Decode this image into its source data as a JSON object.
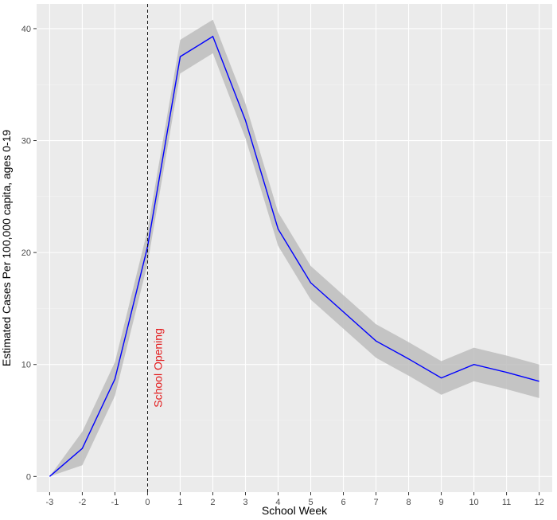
{
  "chart_data": {
    "type": "line",
    "title": "",
    "xlabel": "School Week",
    "ylabel": "Estimated Cases Per 100,000 capita, ages 0-19",
    "x": [
      -3,
      -2,
      -1,
      0,
      1,
      2,
      3,
      4,
      5,
      6,
      7,
      8,
      9,
      10,
      11,
      12
    ],
    "series": [
      {
        "values": [
          0,
          2.5,
          8.7,
          20.5,
          37.5,
          39.3,
          31.8,
          22.1,
          17.3,
          14.7,
          12.1,
          10.5,
          8.8,
          10.0,
          9.3,
          8.5
        ],
        "lower": [
          0,
          1.0,
          7.2,
          19.0,
          36.0,
          37.8,
          30.2,
          20.6,
          15.8,
          13.2,
          10.6,
          9.0,
          7.3,
          8.5,
          7.8,
          7.0
        ],
        "upper": [
          0,
          4.0,
          10.2,
          22.0,
          39.0,
          40.8,
          33.3,
          23.6,
          18.8,
          16.2,
          13.6,
          12.0,
          10.3,
          11.5,
          10.8,
          10.0
        ],
        "color": "#0000ff",
        "band_color": "#bdbdbd"
      }
    ],
    "xlim": [
      -3.4,
      12.4
    ],
    "ylim": [
      -1.4,
      42.2
    ],
    "x_ticks": [
      "-3",
      "-2",
      "-1",
      "0",
      "1",
      "2",
      "3",
      "4",
      "5",
      "6",
      "7",
      "8",
      "9",
      "10",
      "11",
      "12"
    ],
    "y_ticks": [
      "0",
      "10",
      "20",
      "30",
      "40"
    ],
    "grid": true,
    "legend": "none",
    "annotations": [
      {
        "text": "School Opening",
        "x": 0,
        "color": "#e31a1c",
        "line_style": "dashed"
      }
    ]
  }
}
